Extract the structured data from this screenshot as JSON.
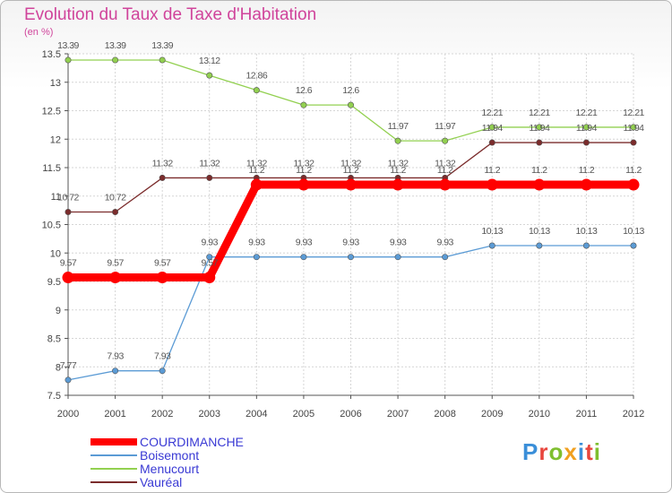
{
  "title": "Evolution du Taux de Taxe d'Habitation",
  "subtitle": "(en %)",
  "logo": "Proxiti",
  "chart_data": {
    "type": "line",
    "title": "Evolution du Taux de Taxe d'Habitation",
    "ylabel": "(en %)",
    "xlabel": "",
    "x": [
      "2000",
      "2001",
      "2002",
      "2003",
      "2004",
      "2005",
      "2006",
      "2007",
      "2008",
      "2009",
      "2010",
      "2011",
      "2012"
    ],
    "yticks": [
      "7.5",
      "8",
      "8.5",
      "9",
      "9.5",
      "10",
      "10.5",
      "11",
      "11.5",
      "12",
      "12.5",
      "13",
      "13.5"
    ],
    "ylim": [
      7.5,
      13.5
    ],
    "grid": true,
    "legend_position": "bottom-left",
    "series": [
      {
        "name": "COURDIMANCHE",
        "color": "#ff0000",
        "values": [
          9.57,
          9.57,
          9.57,
          9.57,
          11.2,
          11.2,
          11.2,
          11.2,
          11.2,
          11.2,
          11.2,
          11.2,
          11.2
        ],
        "labels": [
          "9.57",
          "9.57",
          "9.57",
          "9.57",
          "11.2",
          "11.2",
          "11.2",
          "11.2",
          "11.2",
          "11.2",
          "11.2",
          "11.2",
          "11.2"
        ]
      },
      {
        "name": "Boisemont",
        "color": "#5b9bd5",
        "values": [
          7.77,
          7.93,
          7.93,
          9.93,
          9.93,
          9.93,
          9.93,
          9.93,
          9.93,
          10.13,
          10.13,
          10.13,
          10.13
        ],
        "labels": [
          "7.77",
          "7.93",
          "7.93",
          "9.93",
          "9.93",
          "9.93",
          "9.93",
          "9.93",
          "9.93",
          "10.13",
          "10.13",
          "10.13",
          "10.13"
        ]
      },
      {
        "name": "Menucourt",
        "color": "#92d050",
        "values": [
          13.39,
          13.39,
          13.39,
          13.12,
          12.86,
          12.6,
          12.6,
          11.97,
          11.97,
          12.21,
          12.21,
          12.21,
          12.21
        ],
        "labels": [
          "13.39",
          "13.39",
          "13.39",
          "13.12",
          "12.86",
          "12.6",
          "12.6",
          "11.97",
          "11.97",
          "12.21",
          "12.21",
          "12.21",
          "12.21"
        ]
      },
      {
        "name": "Vauréal",
        "color": "#7b2c2c",
        "values": [
          10.72,
          10.72,
          11.32,
          11.32,
          11.32,
          11.32,
          11.32,
          11.32,
          11.32,
          11.94,
          11.94,
          11.94,
          11.94
        ],
        "labels": [
          "10.72",
          "10.72",
          "11.32",
          "11.32",
          "11.32",
          "11.32",
          "11.32",
          "11.32",
          "11.32",
          "11.94",
          "11.94",
          "11.94",
          "11.94"
        ]
      }
    ]
  }
}
